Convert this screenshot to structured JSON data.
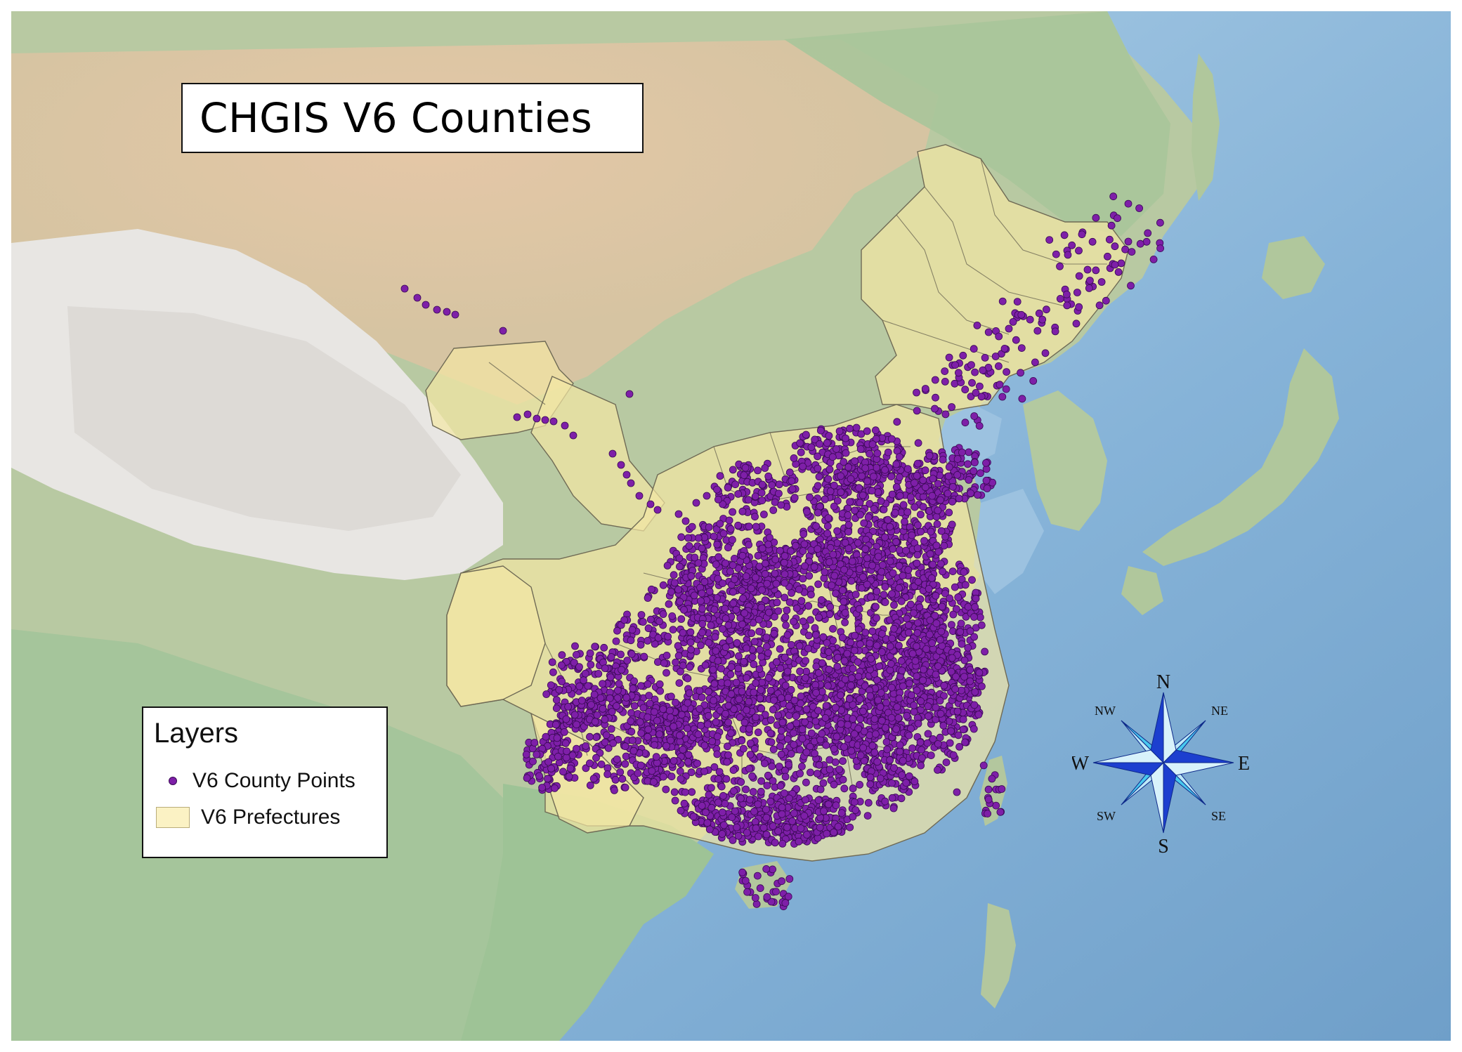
{
  "map": {
    "title": "CHGIS V6 Counties",
    "legend": {
      "title": "Layers",
      "items": [
        {
          "label": "V6 County Points",
          "symbol": "purple-point",
          "color": "#7e1fa8"
        },
        {
          "label": "V6 Prefectures",
          "symbol": "yellow-polygon",
          "color": "#fbf2c4"
        }
      ]
    },
    "compass": {
      "north": "N",
      "south": "S",
      "east": "E",
      "west": "W",
      "northeast": "NE",
      "northwest": "NW",
      "southeast": "SE",
      "southwest": "SW"
    },
    "colors": {
      "ocean": "#8fb6d6",
      "land_low": "#a9c8a3",
      "land_high": "#e0c7a8",
      "mountains": "#e9e7e4",
      "prefecture_fill": "#f3e7a4",
      "county_point": "#7e1fa8",
      "compass_dark": "#1c3fcf",
      "compass_light": "#48c8ee"
    }
  }
}
